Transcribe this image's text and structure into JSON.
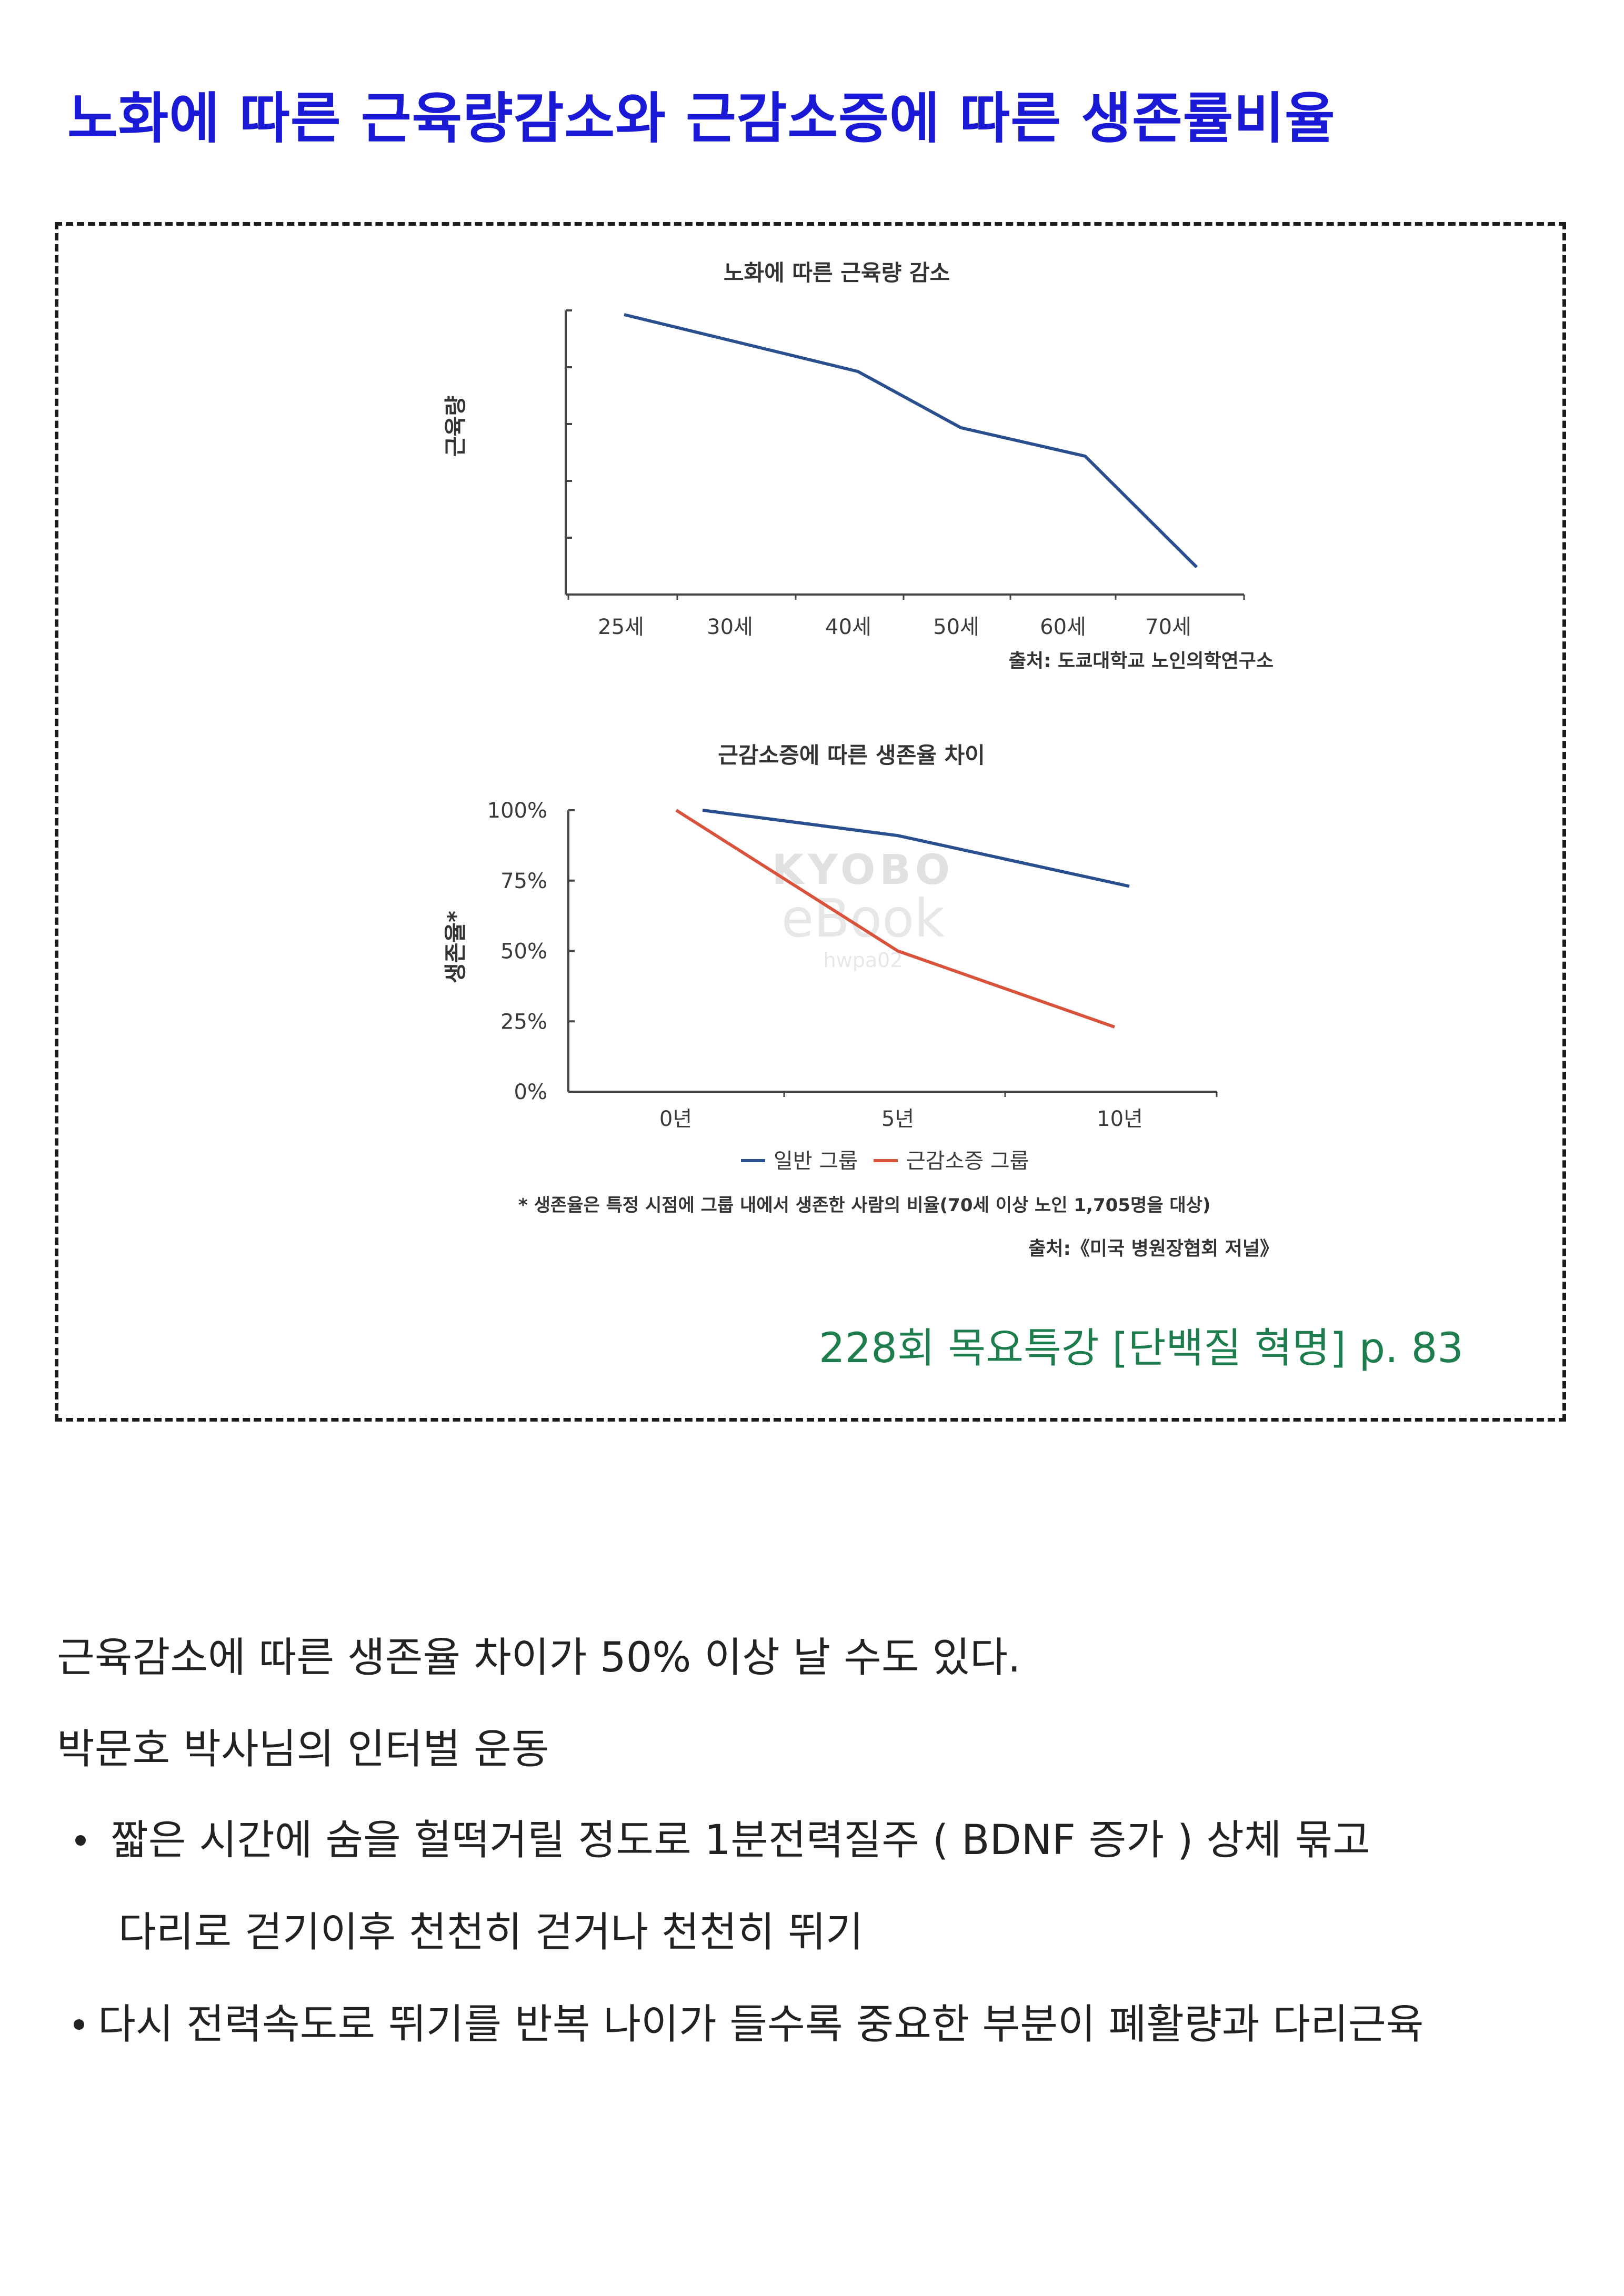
{
  "title": "노화에 따른 근육량감소와 근감소증에 따른 생존률비율",
  "figure": {
    "chart_data": [
      {
        "type": "line",
        "title": "노화에 따른 근육량 감소",
        "xlabel": "",
        "ylabel": "근육량",
        "categories": [
          "25세",
          "30세",
          "40세",
          "50세",
          "60세",
          "70세"
        ],
        "x": [
          25,
          30,
          40,
          50,
          60,
          70
        ],
        "y_axis_labels": "none",
        "series": [
          {
            "values": [
              100,
              90,
              80,
              60,
              50,
              10
            ],
            "color": "#2a4f8f"
          }
        ],
        "line_x": [
          25,
          40,
          50,
          60,
          72
        ],
        "line_values": [
          100,
          80,
          60,
          50,
          10
        ],
        "ylim": [
          0,
          100
        ],
        "source": "출처: 도쿄대학교 노인의학연구소"
      },
      {
        "type": "line",
        "title": "근감소증에 따른 생존율 차이",
        "xlabel": "",
        "ylabel": "생존율*",
        "categories": [
          "0년",
          "5년",
          "10년"
        ],
        "yticks": [
          "0%",
          "25%",
          "50%",
          "75%",
          "100%"
        ],
        "ylim": [
          0,
          100
        ],
        "series": [
          {
            "name": "일반 그룹",
            "x": [
              0,
              5,
              10
            ],
            "values": [
              100,
              91,
              73
            ],
            "color": "#2a4f8f"
          },
          {
            "name": "근감소증 그룹",
            "x": [
              0,
              5,
              10
            ],
            "values": [
              100,
              50,
              23
            ],
            "color": "#d9533c"
          }
        ],
        "legend_position": "bottom",
        "footnote": "* 생존율은 특정 시점에 그룹 내에서 생존한 사람의 비율(70세 이상 노인 1,705명을 대상)",
        "source": "출처:《미국 병원장협회 저널》"
      }
    ],
    "watermark": [
      "KYOBO",
      "eBook",
      "hwpa02"
    ],
    "reference": "228회 목요특강 [단백질 혁명] p. 83"
  },
  "body": {
    "line1": "근육감소에 따른 생존율 차이가 50% 이상 날 수도 있다.",
    "line2": "박문호 박사님의 인터벌 운동",
    "bullet1_line1": "짧은 시간에 숨을 헐떡거릴 정도로 1분전력질주 ( BDNF 증가 )  상체 묶고",
    "bullet1_line2": "다리로 걷기이후 천천히 걷거나 천천히 뛰기",
    "bullet2": "다시 전력속도로 뛰기를 반복  나이가 들수록 중요한 부분이 폐활량과 다리근육"
  }
}
